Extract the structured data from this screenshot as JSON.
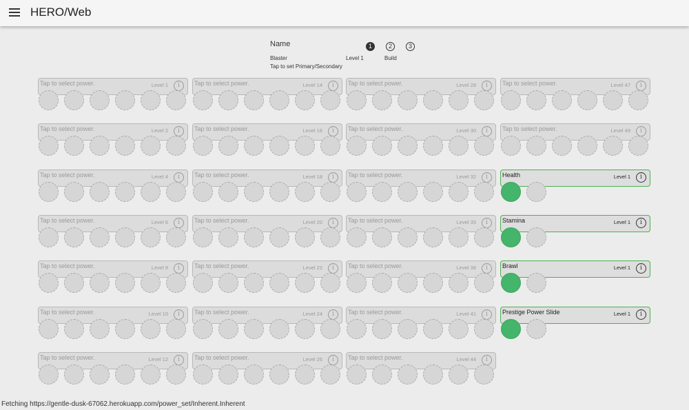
{
  "app": {
    "title": "HERO/Web"
  },
  "character": {
    "name": "Name",
    "class": "Blaster",
    "level": "Level 1",
    "primary_hint": "Tap to set Primary/Secondary"
  },
  "builds": {
    "buttons": [
      "1",
      "2",
      "3"
    ],
    "active": 0,
    "label": "Build"
  },
  "colors": {
    "accent_green": "#44b56a",
    "border_green": "#4caf50",
    "empty_slot": "#d6d6d6"
  },
  "columns": [
    {
      "slots": [
        {
          "name": "Tap to select power.",
          "level": "Level 1"
        },
        {
          "name": "Tap to select power.",
          "level": "Level 2"
        },
        {
          "name": "Tap to select power.",
          "level": "Level 4"
        },
        {
          "name": "Tap to select power.",
          "level": "Level 6"
        },
        {
          "name": "Tap to select power.",
          "level": "Level 8"
        },
        {
          "name": "Tap to select power.",
          "level": "Level 10"
        },
        {
          "name": "Tap to select power.",
          "level": "Level 12"
        }
      ]
    },
    {
      "slots": [
        {
          "name": "Tap to select power.",
          "level": "Level 14"
        },
        {
          "name": "Tap to select power.",
          "level": "Level 16"
        },
        {
          "name": "Tap to select power.",
          "level": "Level 18"
        },
        {
          "name": "Tap to select power.",
          "level": "Level 20"
        },
        {
          "name": "Tap to select power.",
          "level": "Level 22"
        },
        {
          "name": "Tap to select power.",
          "level": "Level 24"
        },
        {
          "name": "Tap to select power.",
          "level": "Level 26"
        }
      ]
    },
    {
      "slots": [
        {
          "name": "Tap to select power.",
          "level": "Level 28"
        },
        {
          "name": "Tap to select power.",
          "level": "Level 30"
        },
        {
          "name": "Tap to select power.",
          "level": "Level 32"
        },
        {
          "name": "Tap to select power.",
          "level": "Level 35"
        },
        {
          "name": "Tap to select power.",
          "level": "Level 38"
        },
        {
          "name": "Tap to select power.",
          "level": "Level 41"
        },
        {
          "name": "Tap to select power.",
          "level": "Level 44"
        }
      ]
    },
    {
      "slots": [
        {
          "name": "Tap to select power.",
          "level": "Level 47"
        },
        {
          "name": "Tap to select power.",
          "level": "Level 49"
        },
        {
          "name": "Health",
          "level": "Level 1",
          "selected": true,
          "enhancement_slots": 2
        },
        {
          "name": "Stamina",
          "level": "Level 1",
          "selected": true,
          "enhancement_slots": 2
        },
        {
          "name": "Brawl",
          "level": "Level 1",
          "selected": true,
          "enhancement_slots": 2
        },
        {
          "name": "Prestige Power Slide",
          "level": "Level 1",
          "selected": true,
          "enhancement_slots": 2
        }
      ]
    }
  ],
  "info_icon_glyph": "i",
  "status": "Fetching https://gentle-dusk-67062.herokuapp.com/power_set/Inherent.Inherent"
}
